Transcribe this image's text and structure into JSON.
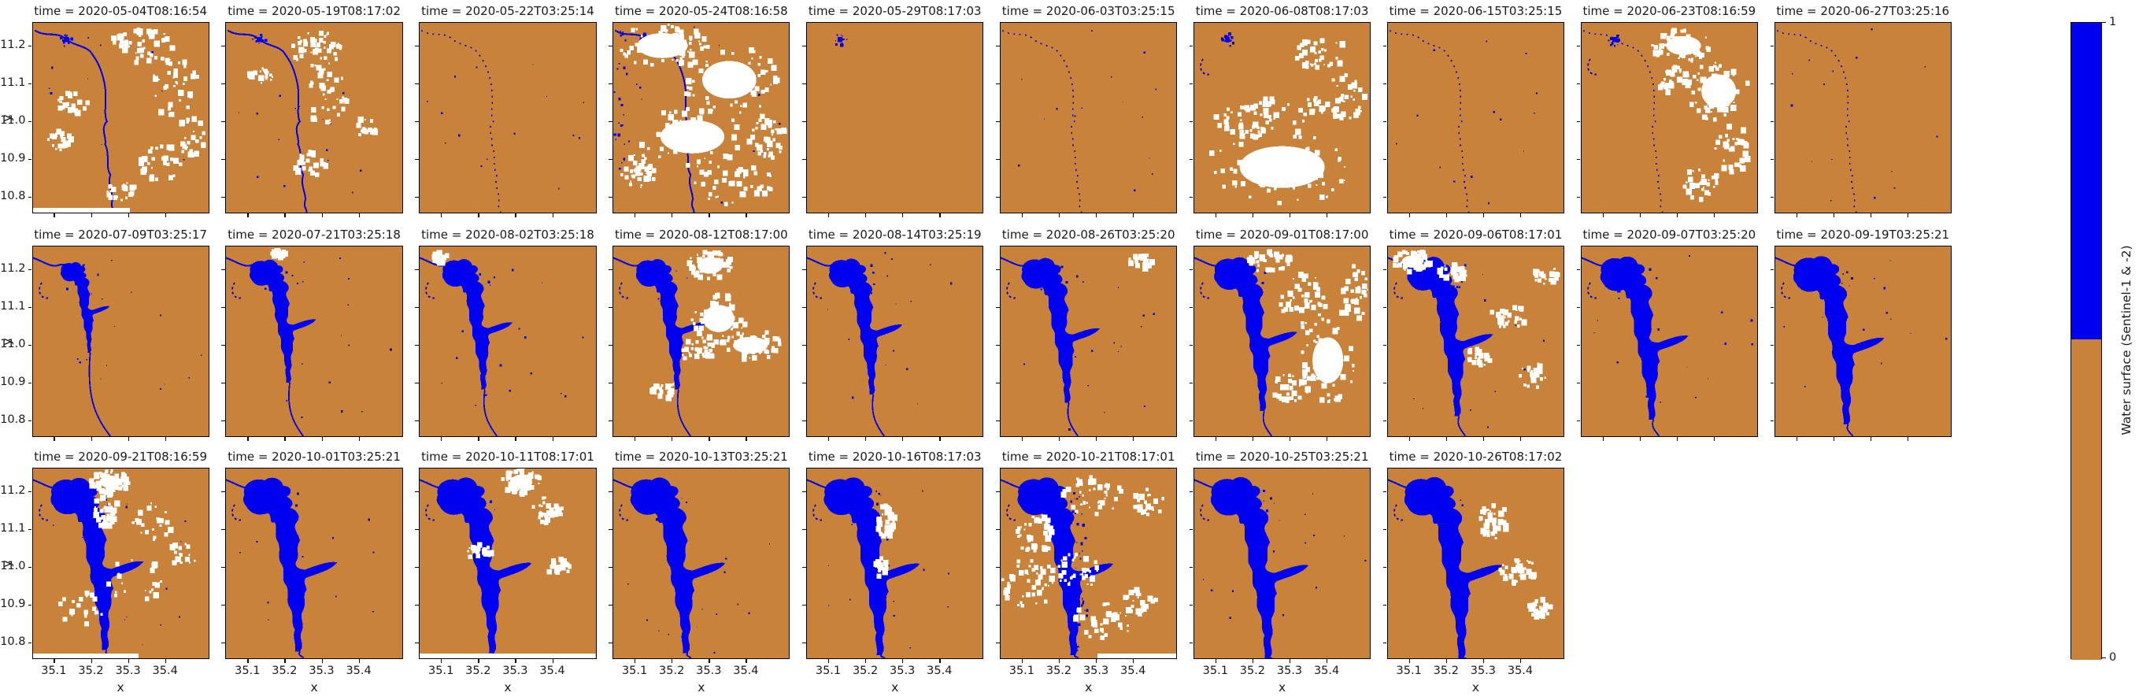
{
  "chart_data": {
    "type": "heatmap",
    "description": "Faceted raster maps of classified water surface over time (blue = water, orange = land, white = no data / cloud)",
    "facet_variable": "time",
    "grid": {
      "rows": 3,
      "cols": 10,
      "last_row_cols": 8
    },
    "xlabel": "x",
    "ylabel": "y",
    "xticks": [
      "35.1",
      "35.2",
      "35.3",
      "35.4"
    ],
    "yticks": [
      "11.2",
      "11.1",
      "11.0",
      "10.9",
      "10.8"
    ],
    "x_range": [
      35.04,
      35.46
    ],
    "y_range": [
      10.75,
      11.26
    ],
    "colorbar": {
      "label": "Water surface (Sentinel-1 & -2)",
      "tick_top": "1",
      "tick_bottom": "0",
      "water_color": "#0000f0",
      "land_color": "#c9823a",
      "cloud_color": "#ffffff",
      "value_meaning": {
        "1": "water",
        "0": "no water"
      }
    },
    "facets": [
      "time = 2020-05-04T08:16:54",
      "time = 2020-05-19T08:17:02",
      "time = 2020-05-22T03:25:14",
      "time = 2020-05-24T08:16:58",
      "time = 2020-05-29T08:17:03",
      "time = 2020-06-03T03:25:15",
      "time = 2020-06-08T08:17:03",
      "time = 2020-06-15T03:25:15",
      "time = 2020-06-23T08:16:59",
      "time = 2020-06-27T03:25:16",
      "time = 2020-07-09T03:25:17",
      "time = 2020-07-21T03:25:18",
      "time = 2020-08-02T03:25:18",
      "time = 2020-08-12T08:17:00",
      "time = 2020-08-14T03:25:19",
      "time = 2020-08-26T03:25:20",
      "time = 2020-09-01T08:17:00",
      "time = 2020-09-06T08:17:01",
      "time = 2020-09-07T03:25:20",
      "time = 2020-09-19T03:25:21",
      "time = 2020-09-21T08:16:59",
      "time = 2020-10-01T03:25:21",
      "time = 2020-10-11T08:17:01",
      "time = 2020-10-13T03:25:21",
      "time = 2020-10-16T08:17:03",
      "time = 2020-10-21T08:17:01",
      "time = 2020-10-25T03:25:21",
      "time = 2020-10-26T08:17:02"
    ]
  },
  "panels": [
    {
      "title": "time = 2020-05-04T08:16:54",
      "water": "river",
      "stage": 0,
      "dam": true,
      "arc": false,
      "speckles": true,
      "bluecol": false,
      "chspeckle": false,
      "strip": [
        0,
        55
      ],
      "clouds": [
        [
          62,
          12,
          18,
          9,
          0.55
        ],
        [
          80,
          34,
          15,
          16,
          0.5
        ],
        [
          24,
          42,
          10,
          6,
          0.3
        ],
        [
          16,
          62,
          8,
          5,
          0.3
        ],
        [
          74,
          74,
          13,
          10,
          0.35
        ],
        [
          50,
          88,
          10,
          6,
          0.3
        ],
        [
          90,
          60,
          8,
          10,
          0.3
        ]
      ]
    },
    {
      "title": "time = 2020-05-19T08:17:02",
      "water": "river",
      "stage": 0,
      "dam": true,
      "arc": false,
      "speckles": true,
      "bluecol": false,
      "chspeckle": false,
      "strip": null,
      "clouds": [
        [
          52,
          14,
          14,
          10,
          0.55
        ],
        [
          58,
          40,
          11,
          16,
          0.45
        ],
        [
          48,
          76,
          9,
          9,
          0.35
        ],
        [
          20,
          28,
          7,
          4,
          0.25
        ],
        [
          80,
          55,
          6,
          5,
          0.2
        ]
      ]
    },
    {
      "title": "time = 2020-05-22T03:25:14",
      "water": "faint",
      "stage": 0,
      "dam": false,
      "arc": false,
      "speckles": true,
      "bluecol": false,
      "chspeckle": false,
      "strip": null,
      "clouds": []
    },
    {
      "title": "time = 2020-05-24T08:16:58",
      "water": "river",
      "stage": 0,
      "dam": true,
      "arc": false,
      "speckles": true,
      "bluecol": true,
      "chspeckle": false,
      "strip": null,
      "clouds": [
        [
          28,
          12,
          26,
          12,
          0.8
        ],
        [
          66,
          30,
          28,
          18,
          0.75
        ],
        [
          45,
          60,
          33,
          16,
          0.65
        ],
        [
          70,
          85,
          24,
          11,
          0.55
        ],
        [
          14,
          78,
          11,
          9,
          0.45
        ],
        [
          88,
          60,
          10,
          12,
          0.5
        ]
      ]
    },
    {
      "title": "time = 2020-05-29T08:17:03",
      "water": "none",
      "stage": 0,
      "dam": true,
      "arc": false,
      "speckles": false,
      "bluecol": false,
      "chspeckle": false,
      "strip": null,
      "clouds": []
    },
    {
      "title": "time = 2020-06-03T03:25:15",
      "water": "faint",
      "stage": 0,
      "dam": false,
      "arc": false,
      "speckles": true,
      "bluecol": false,
      "chspeckle": false,
      "strip": null,
      "clouds": []
    },
    {
      "title": "time = 2020-06-08T08:17:03",
      "water": "none",
      "stage": 0,
      "dam": true,
      "arc": true,
      "speckles": false,
      "bluecol": false,
      "chspeckle": false,
      "strip": null,
      "clouds": [
        [
          50,
          76,
          44,
          20,
          0.8
        ],
        [
          28,
          52,
          18,
          9,
          0.55
        ],
        [
          72,
          16,
          16,
          9,
          0.45
        ],
        [
          86,
          40,
          11,
          13,
          0.45
        ],
        [
          55,
          45,
          20,
          8,
          0.4
        ]
      ]
    },
    {
      "title": "time = 2020-06-15T03:25:15",
      "water": "faint",
      "stage": 0,
      "dam": false,
      "arc": false,
      "speckles": true,
      "bluecol": false,
      "chspeckle": false,
      "strip": null,
      "clouds": []
    },
    {
      "title": "time = 2020-06-23T08:16:59",
      "water": "faint",
      "stage": 0,
      "dam": true,
      "arc": true,
      "speckles": false,
      "bluecol": false,
      "chspeckle": false,
      "strip": null,
      "clouds": [
        [
          58,
          12,
          18,
          9,
          0.6
        ],
        [
          78,
          36,
          18,
          16,
          0.65
        ],
        [
          87,
          66,
          11,
          13,
          0.45
        ],
        [
          52,
          30,
          10,
          7,
          0.35
        ],
        [
          68,
          85,
          12,
          8,
          0.35
        ]
      ]
    },
    {
      "title": "time = 2020-06-27T03:25:16",
      "water": "faint",
      "stage": 0,
      "dam": false,
      "arc": false,
      "speckles": true,
      "bluecol": false,
      "chspeckle": false,
      "strip": null,
      "clouds": []
    },
    {
      "title": "time = 2020-07-09T03:25:17",
      "water": "reservoir",
      "stage": 0.5,
      "dam": false,
      "arc": true,
      "speckles": true,
      "bluecol": false,
      "chspeckle": false,
      "strip": null,
      "clouds": []
    },
    {
      "title": "time = 2020-07-21T03:25:18",
      "water": "reservoir",
      "stage": 0.68,
      "dam": false,
      "arc": true,
      "speckles": true,
      "bluecol": false,
      "chspeckle": false,
      "strip": null,
      "clouds": [
        [
          30,
          4,
          4,
          2,
          0.5
        ]
      ]
    },
    {
      "title": "time = 2020-08-02T03:25:18",
      "water": "reservoir",
      "stage": 0.72,
      "dam": false,
      "arc": true,
      "speckles": true,
      "bluecol": false,
      "chspeckle": false,
      "strip": null,
      "clouds": [
        [
          12,
          6,
          4,
          3,
          0.4
        ]
      ]
    },
    {
      "title": "time = 2020-08-12T08:17:00",
      "water": "reservoir",
      "stage": 0.72,
      "dam": false,
      "arc": true,
      "speckles": false,
      "bluecol": false,
      "chspeckle": false,
      "strip": null,
      "clouds": [
        [
          55,
          10,
          13,
          8,
          0.75
        ],
        [
          60,
          38,
          16,
          13,
          0.6
        ],
        [
          78,
          52,
          18,
          8,
          0.6
        ],
        [
          48,
          55,
          10,
          6,
          0.4
        ],
        [
          30,
          75,
          8,
          5,
          0.25
        ]
      ]
    },
    {
      "title": "time = 2020-08-14T03:25:19",
      "water": "reservoir",
      "stage": 0.75,
      "dam": false,
      "arc": true,
      "speckles": true,
      "bluecol": false,
      "chspeckle": false,
      "strip": null,
      "clouds": []
    },
    {
      "title": "time = 2020-08-26T03:25:20",
      "water": "reservoir",
      "stage": 0.8,
      "dam": false,
      "arc": true,
      "speckles": true,
      "bluecol": false,
      "chspeckle": false,
      "strip": null,
      "clouds": [
        [
          80,
          8,
          7,
          4,
          0.3
        ]
      ]
    },
    {
      "title": "time = 2020-09-01T08:17:00",
      "water": "reservoir",
      "stage": 0.85,
      "dam": false,
      "arc": true,
      "speckles": false,
      "bluecol": false,
      "chspeckle": false,
      "strip": null,
      "clouds": [
        [
          42,
          8,
          13,
          6,
          0.5
        ],
        [
          62,
          28,
          13,
          15,
          0.55
        ],
        [
          76,
          60,
          16,
          22,
          0.6
        ],
        [
          90,
          25,
          9,
          16,
          0.5
        ],
        [
          55,
          75,
          10,
          8,
          0.35
        ]
      ]
    },
    {
      "title": "time = 2020-09-06T08:17:01",
      "water": "reservoir",
      "stage": 0.88,
      "dam": false,
      "arc": true,
      "speckles": true,
      "bluecol": false,
      "chspeckle": false,
      "strip": null,
      "clouds": [
        [
          14,
          8,
          11,
          6,
          0.65
        ],
        [
          38,
          14,
          9,
          5,
          0.45
        ],
        [
          68,
          38,
          11,
          8,
          0.35
        ],
        [
          84,
          68,
          9,
          7,
          0.35
        ],
        [
          52,
          58,
          7,
          5,
          0.25
        ],
        [
          90,
          15,
          7,
          5,
          0.3
        ]
      ]
    },
    {
      "title": "time = 2020-09-07T03:25:20",
      "water": "reservoir",
      "stage": 0.9,
      "dam": false,
      "arc": true,
      "speckles": true,
      "bluecol": false,
      "chspeckle": false,
      "strip": null,
      "clouds": []
    },
    {
      "title": "time = 2020-09-19T03:25:21",
      "water": "reservoir",
      "stage": 0.93,
      "dam": false,
      "arc": true,
      "speckles": true,
      "bluecol": false,
      "chspeckle": false,
      "strip": null,
      "clouds": []
    },
    {
      "title": "time = 2020-09-21T08:16:59",
      "water": "reservoir",
      "stage": 0.95,
      "dam": false,
      "arc": true,
      "speckles": true,
      "bluecol": false,
      "chspeckle": false,
      "strip": [
        0,
        60
      ],
      "clouds": [
        [
          44,
          7,
          11,
          6,
          0.75
        ],
        [
          42,
          22,
          7,
          10,
          0.5
        ],
        [
          68,
          28,
          13,
          10,
          0.3
        ],
        [
          58,
          58,
          17,
          13,
          0.25
        ],
        [
          28,
          74,
          13,
          9,
          0.25
        ],
        [
          85,
          45,
          8,
          7,
          0.2
        ]
      ]
    },
    {
      "title": "time = 2020-10-01T03:25:21",
      "water": "reservoir",
      "stage": 0.96,
      "dam": false,
      "arc": true,
      "speckles": true,
      "bluecol": false,
      "chspeckle": false,
      "strip": null,
      "clouds": []
    },
    {
      "title": "time = 2020-10-11T08:17:01",
      "water": "reservoir",
      "stage": 0.97,
      "dam": false,
      "arc": true,
      "speckles": false,
      "bluecol": false,
      "chspeckle": false,
      "strip": [
        0,
        100
      ],
      "clouds": [
        [
          58,
          7,
          11,
          7,
          0.8
        ],
        [
          73,
          22,
          9,
          7,
          0.45
        ],
        [
          79,
          52,
          7,
          5,
          0.3
        ],
        [
          34,
          44,
          7,
          4,
          0.25
        ]
      ]
    },
    {
      "title": "time = 2020-10-13T03:25:21",
      "water": "reservoir",
      "stage": 0.97,
      "dam": false,
      "arc": true,
      "speckles": true,
      "bluecol": false,
      "chspeckle": false,
      "strip": null,
      "clouds": []
    },
    {
      "title": "time = 2020-10-16T08:17:03",
      "water": "reservoir",
      "stage": 0.98,
      "dam": false,
      "arc": true,
      "speckles": true,
      "bluecol": false,
      "chspeckle": false,
      "strip": null,
      "clouds": [
        [
          45,
          28,
          5,
          9,
          0.5
        ],
        [
          42,
          52,
          4,
          5,
          0.35
        ]
      ]
    },
    {
      "title": "time = 2020-10-21T08:17:01",
      "water": "reservoir",
      "stage": 0.98,
      "dam": false,
      "arc": true,
      "speckles": false,
      "bluecol": false,
      "chspeckle": true,
      "strip": [
        55,
        45
      ],
      "clouds": [
        [
          52,
          14,
          18,
          10,
          0.5
        ],
        [
          20,
          34,
          13,
          10,
          0.45
        ],
        [
          16,
          60,
          16,
          13,
          0.55
        ],
        [
          44,
          54,
          13,
          10,
          0.45
        ],
        [
          58,
          80,
          18,
          10,
          0.45
        ],
        [
          84,
          18,
          9,
          7,
          0.35
        ],
        [
          80,
          70,
          10,
          7,
          0.3
        ]
      ]
    },
    {
      "title": "time = 2020-10-25T03:25:21",
      "water": "reservoir",
      "stage": 1.0,
      "dam": false,
      "arc": true,
      "speckles": true,
      "bluecol": false,
      "chspeckle": false,
      "strip": null,
      "clouds": []
    },
    {
      "title": "time = 2020-10-26T08:17:02",
      "water": "reservoir",
      "stage": 1.0,
      "dam": false,
      "arc": true,
      "speckles": false,
      "bluecol": false,
      "chspeckle": false,
      "strip": null,
      "clouds": [
        [
          60,
          28,
          9,
          9,
          0.55
        ],
        [
          74,
          54,
          11,
          7,
          0.45
        ],
        [
          87,
          74,
          7,
          5,
          0.35
        ]
      ]
    }
  ]
}
